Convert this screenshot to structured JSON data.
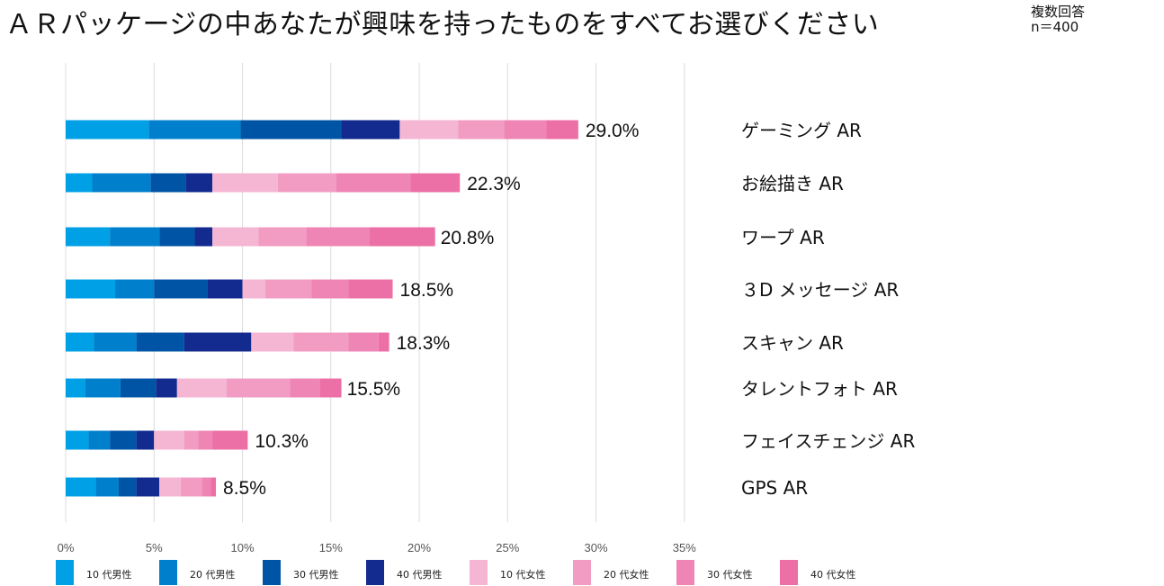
{
  "header": {
    "title": "ＡＲパッケージの中あなたが興味を持ったものをすべてお選びください",
    "note_line1": "複数回答",
    "note_line2": "n＝400"
  },
  "chart_data": {
    "type": "bar",
    "orientation": "horizontal",
    "stacked": true,
    "title": "ＡＲパッケージの中あなたが興味を持ったものをすべてお選びください",
    "xlabel": "",
    "ylabel": "",
    "xlim": [
      0,
      35
    ],
    "x_ticks": [
      "0%",
      "5%",
      "10%",
      "15%",
      "20%",
      "25%",
      "30%",
      "35%"
    ],
    "x_tick_values": [
      0,
      5,
      10,
      15,
      20,
      25,
      30,
      35
    ],
    "grid": "vertical",
    "legend_position": "bottom",
    "categories": [
      "ゲーミング AR",
      "お絵描き AR",
      "ワープ AR",
      "３D メッセージ AR",
      "スキャン AR",
      "タレントフォト AR",
      "フェイスチェンジ AR",
      "GPS AR"
    ],
    "totals": [
      29.0,
      22.3,
      20.8,
      18.5,
      18.3,
      15.5,
      10.3,
      8.5
    ],
    "total_labels": [
      "29.0%",
      "22.3%",
      "20.8%",
      "18.5%",
      "18.3%",
      "15.5%",
      "10.3%",
      "8.5%"
    ],
    "series": [
      {
        "name": "10 代男性",
        "color": "#00A0E6",
        "values": [
          4.7,
          1.5,
          2.5,
          2.8,
          1.6,
          1.1,
          1.3,
          1.7
        ]
      },
      {
        "name": "20 代男性",
        "color": "#0080CC",
        "values": [
          5.2,
          3.3,
          2.8,
          2.2,
          2.4,
          2.0,
          1.2,
          1.3
        ]
      },
      {
        "name": "30 代男性",
        "color": "#0054A6",
        "values": [
          5.7,
          2.0,
          2.0,
          3.0,
          2.7,
          2.0,
          1.5,
          1.0
        ]
      },
      {
        "name": "40 代男性",
        "color": "#132A8F",
        "values": [
          3.3,
          1.5,
          1.0,
          2.0,
          3.8,
          1.2,
          1.0,
          1.3
        ]
      },
      {
        "name": "10 代女性",
        "color": "#F4B6D2",
        "values": [
          3.3,
          3.7,
          2.6,
          1.3,
          2.4,
          2.8,
          1.7,
          1.2
        ]
      },
      {
        "name": "20 代女性",
        "color": "#F29CC3",
        "values": [
          2.6,
          3.3,
          2.7,
          2.6,
          3.1,
          3.6,
          0.8,
          1.2
        ]
      },
      {
        "name": "30 代女性",
        "color": "#EE85B5",
        "values": [
          2.4,
          4.2,
          3.6,
          2.1,
          1.7,
          1.7,
          0.8,
          0.5
        ]
      },
      {
        "name": "40 代女性",
        "color": "#EC6FA6",
        "values": [
          1.8,
          2.8,
          3.7,
          2.5,
          0.6,
          1.2,
          2.0,
          0.3
        ]
      }
    ]
  }
}
